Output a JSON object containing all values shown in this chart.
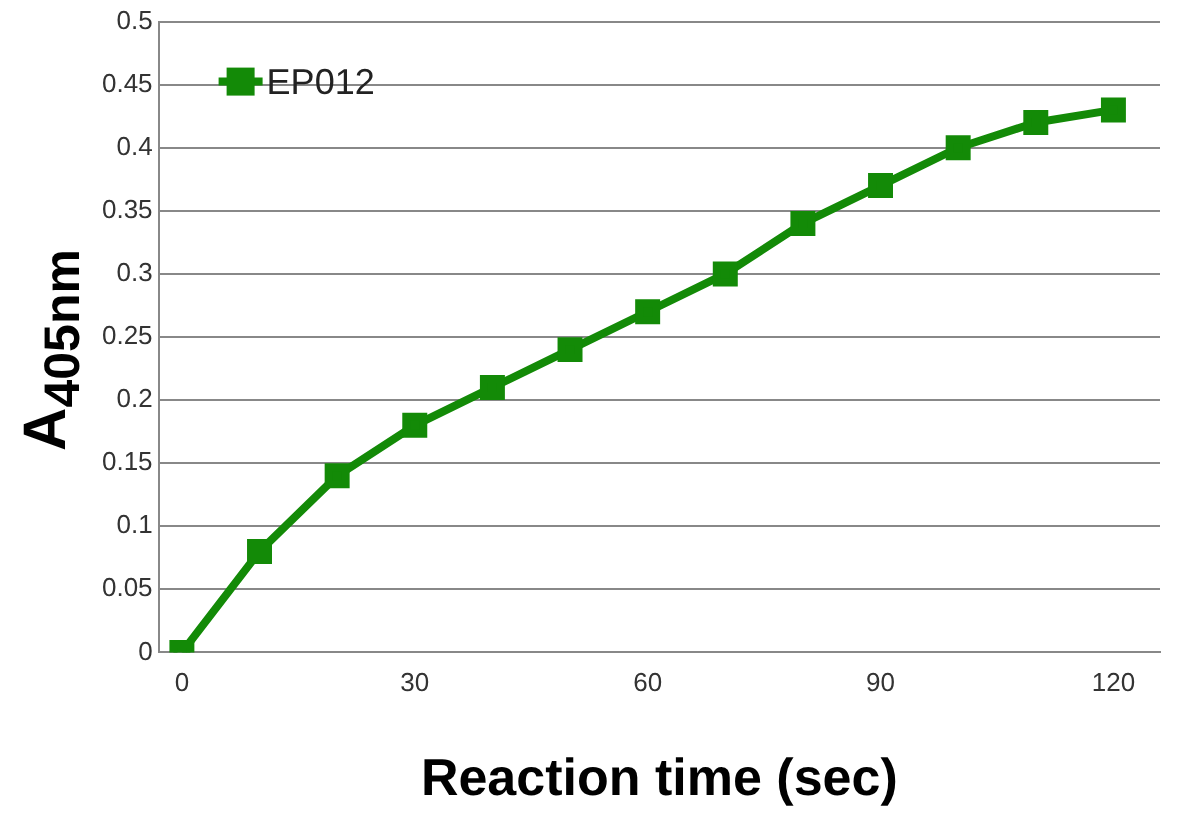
{
  "chart_data": {
    "type": "line",
    "xlabel": "Reaction time (sec)",
    "ylabel": "A$_{405nm}$",
    "x": [
      0,
      10,
      20,
      30,
      40,
      50,
      60,
      70,
      80,
      90,
      100,
      110,
      120
    ],
    "series": [
      {
        "name": "EP012",
        "color": "#138a07",
        "values": [
          0,
          0.08,
          0.14,
          0.18,
          0.21,
          0.24,
          0.27,
          0.3,
          0.34,
          0.37,
          0.4,
          0.42,
          0.43
        ]
      }
    ],
    "xlim": [
      -3,
      126
    ],
    "xticks": [
      0,
      30,
      60,
      90,
      120
    ],
    "ylim": [
      0,
      0.5
    ],
    "yticks": [
      0,
      0.05,
      0.1,
      0.15,
      0.2,
      0.25,
      0.3,
      0.35,
      0.4,
      0.45,
      0.5
    ],
    "grid": "y",
    "legend": "top left",
    "marker": "square",
    "line_style": "solid"
  }
}
